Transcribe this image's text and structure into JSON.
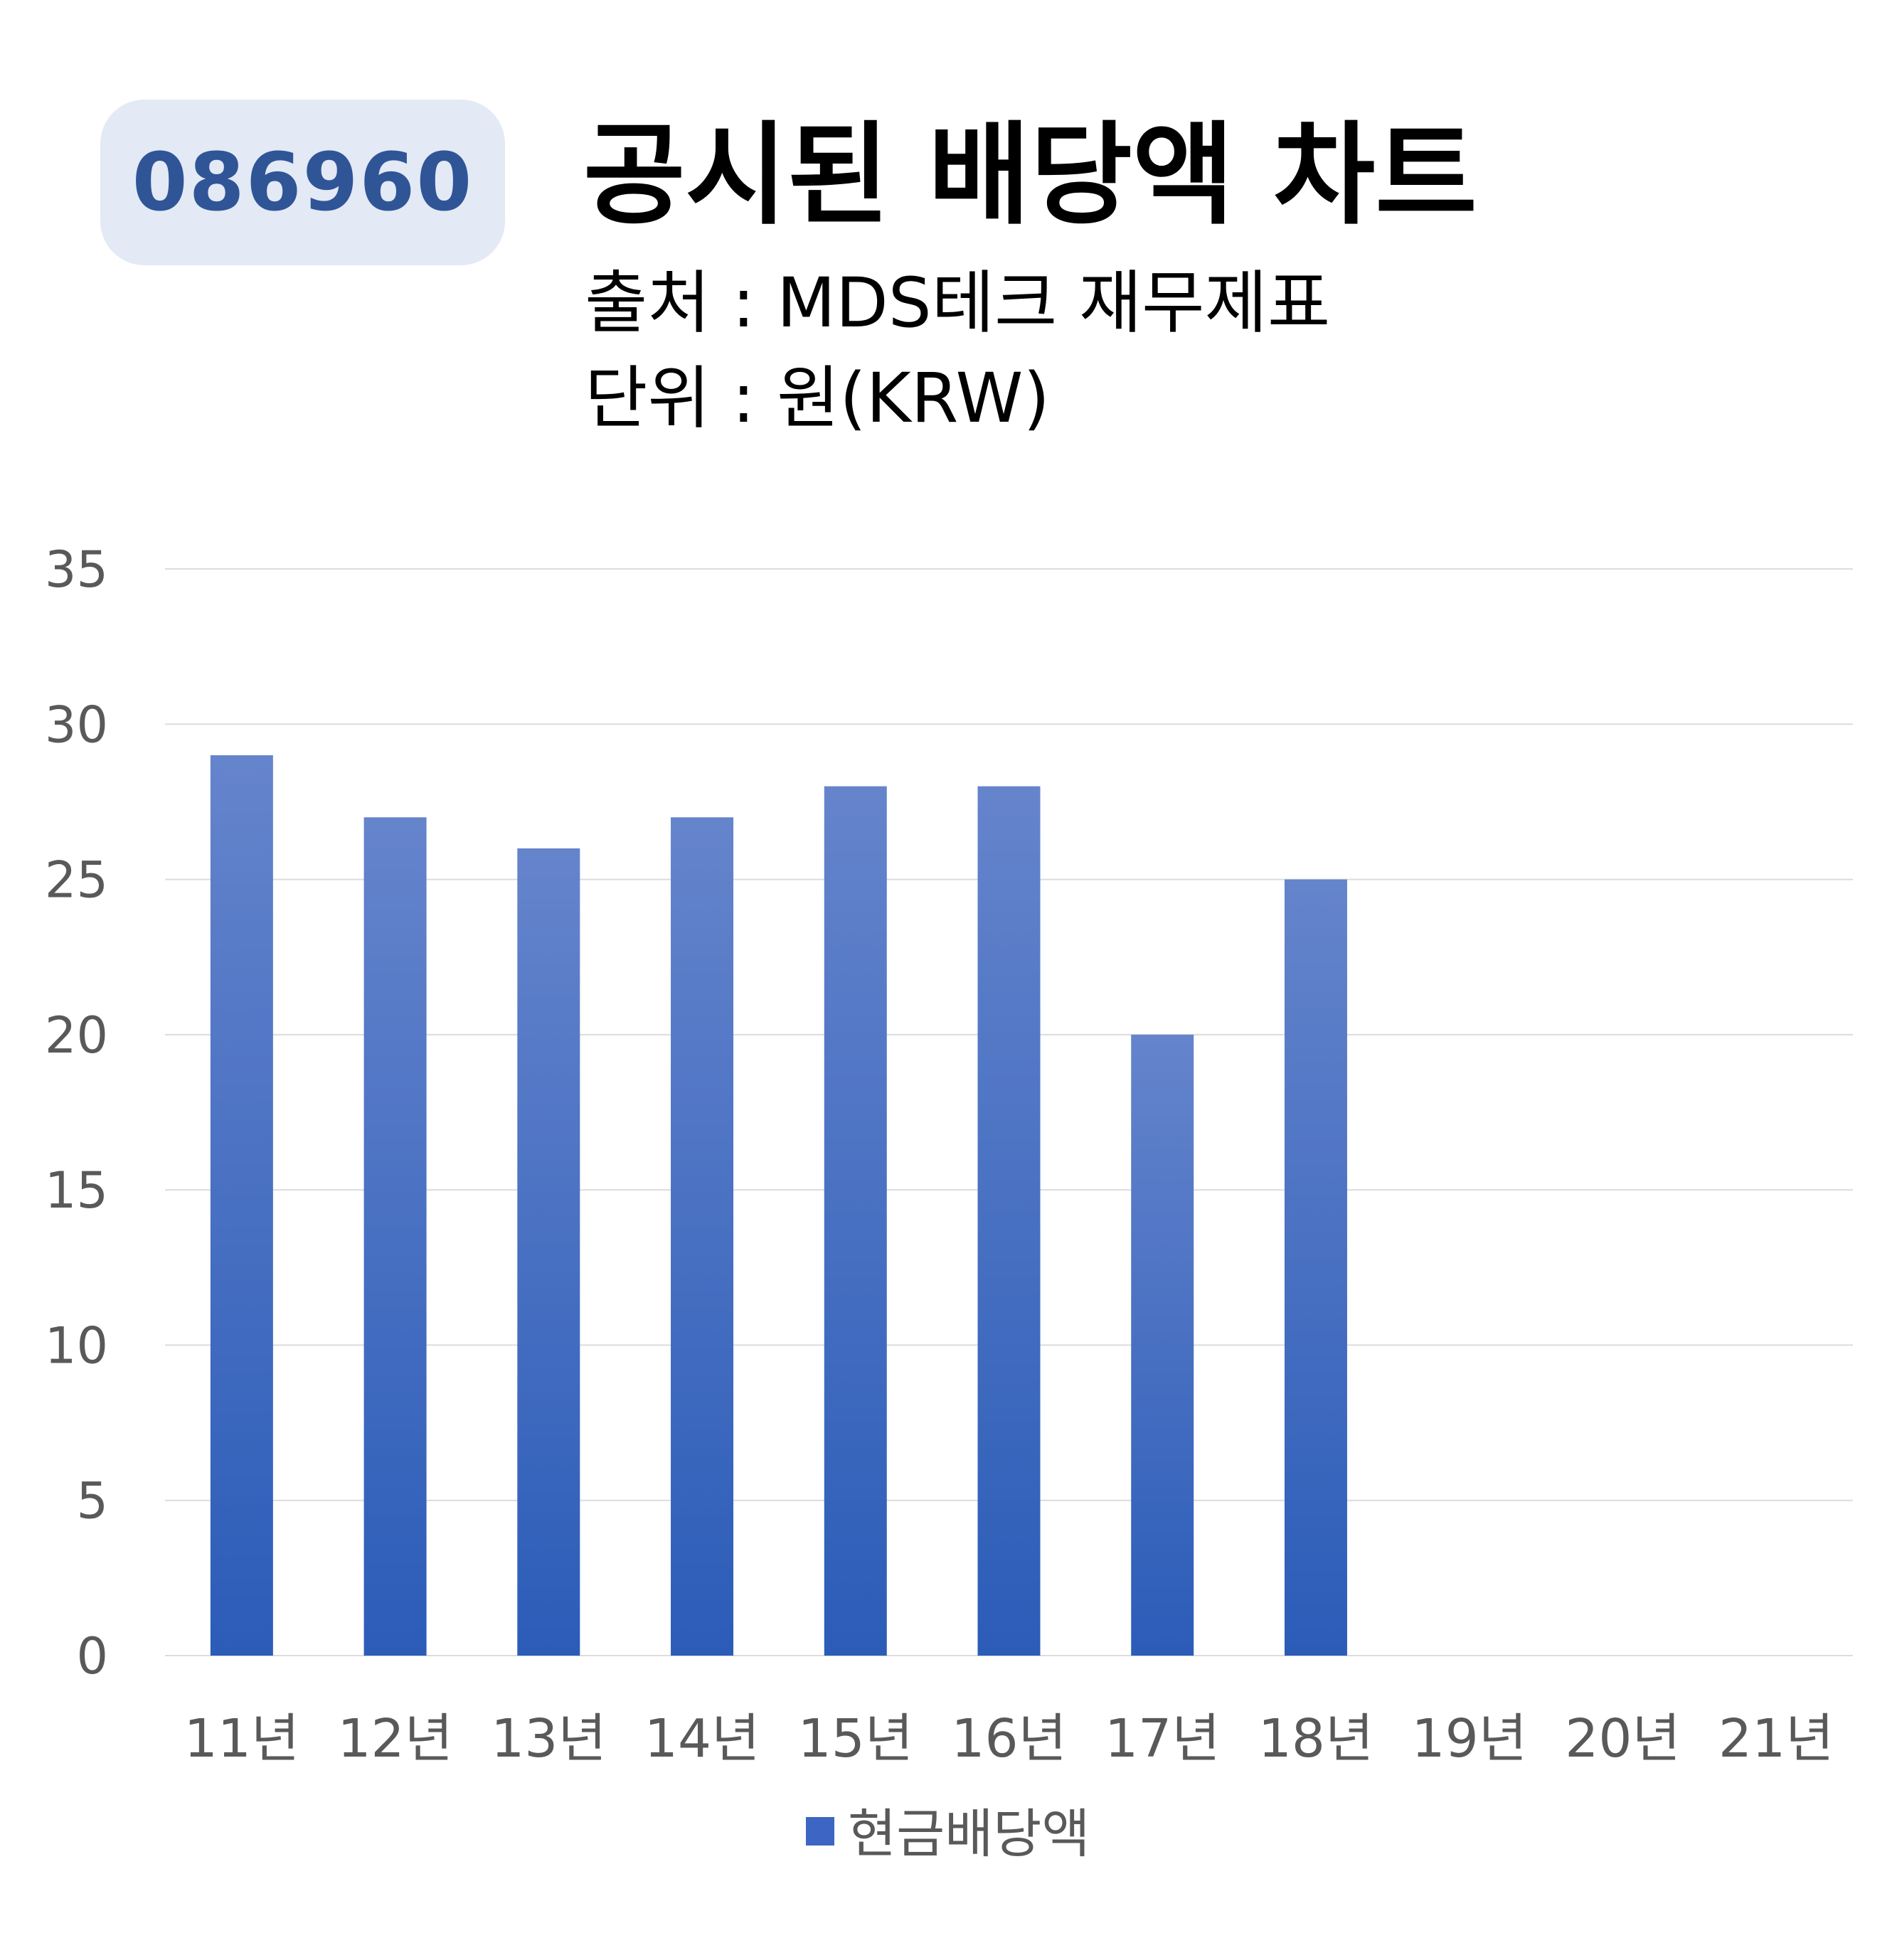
{
  "header": {
    "code_badge": "086960",
    "title": "공시된 배당액 차트",
    "source": "출처 : MDS테크 재무제표",
    "unit": "단위 : 원(KRW)"
  },
  "chart_data": {
    "type": "bar",
    "categories": [
      "11년",
      "12년",
      "13년",
      "14년",
      "15년",
      "16년",
      "17년",
      "18년",
      "19년",
      "20년",
      "21년"
    ],
    "series": [
      {
        "name": "현금배당액",
        "values": [
          29,
          27,
          26,
          27,
          28,
          28,
          20,
          25,
          null,
          null,
          null
        ]
      }
    ],
    "y_ticks": [
      "0",
      "5",
      "10",
      "15",
      "20",
      "25",
      "30",
      "35"
    ],
    "ylim": [
      0,
      35
    ],
    "grid": true,
    "legend_position": "bottom-center",
    "colors": {
      "bar_top": "#6584cc",
      "bar_bottom": "#2b5cb8",
      "legend_swatch": "#3d66c4",
      "grid": "#dcdcdc",
      "tick_text": "#595959"
    }
  }
}
